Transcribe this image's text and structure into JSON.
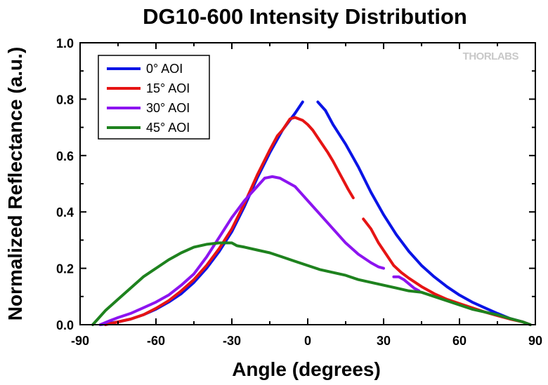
{
  "chart_data": {
    "type": "line",
    "title": "DG10-600 Intensity Distribution",
    "xlabel": "Angle (degrees)",
    "ylabel": "Normalized Reflectance (a.u.)",
    "xlim": [
      -90,
      90
    ],
    "ylim": [
      0,
      1.0
    ],
    "x_ticks": [
      "-90",
      "-60",
      "-30",
      "0",
      "30",
      "60",
      "90"
    ],
    "y_ticks": [
      "0.0",
      "0.2",
      "0.4",
      "0.6",
      "0.8",
      "1.0"
    ],
    "grid": false,
    "legend_position": "top-left",
    "watermark": "THORLABS",
    "series": [
      {
        "name": "0° AOI",
        "color": "#0a14e6",
        "segments": [
          [
            [
              -82,
              0.0
            ],
            [
              -75,
              0.01
            ],
            [
              -70,
              0.02
            ],
            [
              -65,
              0.035
            ],
            [
              -60,
              0.055
            ],
            [
              -55,
              0.08
            ],
            [
              -50,
              0.11
            ],
            [
              -45,
              0.15
            ],
            [
              -40,
              0.2
            ],
            [
              -35,
              0.26
            ],
            [
              -30,
              0.33
            ],
            [
              -25,
              0.42
            ],
            [
              -20,
              0.52
            ],
            [
              -15,
              0.61
            ],
            [
              -10,
              0.69
            ],
            [
              -5,
              0.75
            ],
            [
              -2,
              0.79
            ]
          ],
          [
            [
              4,
              0.79
            ],
            [
              7,
              0.76
            ],
            [
              10,
              0.71
            ],
            [
              15,
              0.64
            ],
            [
              20,
              0.56
            ],
            [
              25,
              0.47
            ],
            [
              30,
              0.39
            ],
            [
              35,
              0.32
            ],
            [
              40,
              0.26
            ],
            [
              45,
              0.21
            ],
            [
              50,
              0.17
            ],
            [
              55,
              0.135
            ],
            [
              60,
              0.105
            ],
            [
              65,
              0.08
            ],
            [
              70,
              0.06
            ],
            [
              75,
              0.04
            ],
            [
              80,
              0.022
            ],
            [
              85,
              0.01
            ],
            [
              88,
              0.0
            ]
          ]
        ]
      },
      {
        "name": "15° AOI",
        "color": "#e61414",
        "segments": [
          [
            [
              -80,
              0.0
            ],
            [
              -75,
              0.01
            ],
            [
              -70,
              0.02
            ],
            [
              -65,
              0.035
            ],
            [
              -60,
              0.058
            ],
            [
              -55,
              0.085
            ],
            [
              -50,
              0.12
            ],
            [
              -45,
              0.16
            ],
            [
              -40,
              0.21
            ],
            [
              -35,
              0.27
            ],
            [
              -30,
              0.34
            ],
            [
              -25,
              0.43
            ],
            [
              -20,
              0.53
            ],
            [
              -15,
              0.62
            ],
            [
              -12,
              0.67
            ],
            [
              -10,
              0.69
            ],
            [
              -7,
              0.73
            ],
            [
              -5,
              0.735
            ],
            [
              -2,
              0.725
            ],
            [
              0,
              0.71
            ],
            [
              2,
              0.69
            ],
            [
              5,
              0.65
            ],
            [
              8,
              0.61
            ],
            [
              10,
              0.58
            ],
            [
              13,
              0.53
            ],
            [
              16,
              0.48
            ],
            [
              18,
              0.45
            ]
          ],
          [
            [
              22,
              0.375
            ],
            [
              25,
              0.34
            ],
            [
              28,
              0.29
            ],
            [
              31,
              0.25
            ],
            [
              34,
              0.21
            ],
            [
              37,
              0.185
            ],
            [
              40,
              0.165
            ],
            [
              45,
              0.135
            ],
            [
              50,
              0.11
            ],
            [
              55,
              0.09
            ],
            [
              60,
              0.075
            ],
            [
              65,
              0.06
            ],
            [
              70,
              0.045
            ],
            [
              75,
              0.032
            ],
            [
              80,
              0.02
            ],
            [
              85,
              0.01
            ],
            [
              88,
              0.0
            ]
          ]
        ]
      },
      {
        "name": "30° AOI",
        "color": "#8c14f0",
        "segments": [
          [
            [
              -82,
              0.0
            ],
            [
              -78,
              0.015
            ],
            [
              -75,
              0.025
            ],
            [
              -70,
              0.04
            ],
            [
              -65,
              0.06
            ],
            [
              -60,
              0.08
            ],
            [
              -55,
              0.105
            ],
            [
              -50,
              0.14
            ],
            [
              -45,
              0.18
            ],
            [
              -40,
              0.24
            ],
            [
              -35,
              0.31
            ],
            [
              -30,
              0.38
            ],
            [
              -25,
              0.44
            ],
            [
              -20,
              0.49
            ],
            [
              -17,
              0.52
            ],
            [
              -14,
              0.525
            ],
            [
              -11,
              0.52
            ],
            [
              -8,
              0.505
            ],
            [
              -5,
              0.49
            ],
            [
              -2,
              0.46
            ],
            [
              1,
              0.43
            ],
            [
              5,
              0.39
            ],
            [
              10,
              0.34
            ],
            [
              15,
              0.29
            ],
            [
              20,
              0.25
            ],
            [
              25,
              0.22
            ],
            [
              28,
              0.205
            ],
            [
              30,
              0.2
            ]
          ],
          [
            [
              34,
              0.17
            ],
            [
              36,
              0.17
            ],
            [
              38,
              0.16
            ],
            [
              40,
              0.145
            ],
            [
              42,
              0.13
            ],
            [
              44,
              0.12
            ]
          ]
        ]
      },
      {
        "name": "45° AOI",
        "color": "#1e821e",
        "segments": [
          [
            [
              -85,
              0.0
            ],
            [
              -83,
              0.02
            ],
            [
              -80,
              0.05
            ],
            [
              -75,
              0.09
            ],
            [
              -70,
              0.13
            ],
            [
              -65,
              0.17
            ],
            [
              -60,
              0.2
            ],
            [
              -55,
              0.23
            ],
            [
              -50,
              0.255
            ],
            [
              -45,
              0.275
            ],
            [
              -40,
              0.285
            ],
            [
              -35,
              0.29
            ],
            [
              -30,
              0.29
            ],
            [
              -28,
              0.28
            ],
            [
              -25,
              0.275
            ],
            [
              -20,
              0.265
            ],
            [
              -15,
              0.255
            ],
            [
              -10,
              0.24
            ],
            [
              -5,
              0.225
            ],
            [
              0,
              0.21
            ],
            [
              5,
              0.195
            ],
            [
              10,
              0.185
            ],
            [
              15,
              0.175
            ],
            [
              20,
              0.16
            ],
            [
              25,
              0.15
            ],
            [
              30,
              0.14
            ],
            [
              35,
              0.13
            ],
            [
              40,
              0.12
            ],
            [
              45,
              0.115
            ],
            [
              50,
              0.1
            ],
            [
              55,
              0.085
            ],
            [
              60,
              0.07
            ],
            [
              65,
              0.055
            ],
            [
              70,
              0.045
            ],
            [
              75,
              0.035
            ],
            [
              80,
              0.022
            ],
            [
              85,
              0.01
            ],
            [
              88,
              0.0
            ]
          ]
        ]
      }
    ]
  }
}
